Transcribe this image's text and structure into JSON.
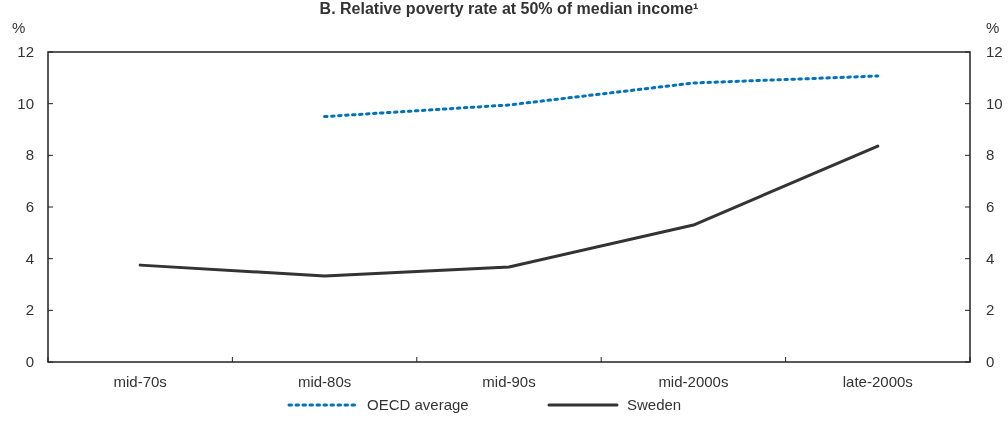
{
  "chart_data": {
    "type": "line",
    "title": "B. Relative poverty rate at 50% of median income¹",
    "ylabel": "%",
    "y2label": "%",
    "categories": [
      "mid-70s",
      "mid-80s",
      "mid-90s",
      "mid-2000s",
      "late-2000s"
    ],
    "series": [
      {
        "name": "OECD average",
        "color": "#0072bc",
        "line_style": "dotted",
        "values": [
          null,
          9.5,
          9.95,
          10.8,
          11.07
        ]
      },
      {
        "name": "Sweden",
        "color": "#333333",
        "line_style": "solid",
        "values": [
          3.75,
          3.33,
          3.68,
          5.3,
          8.36
        ]
      }
    ],
    "ylim": [
      0,
      12
    ],
    "yticks": [
      0,
      2,
      4,
      6,
      8,
      10,
      12
    ],
    "y2lim": [
      0,
      12
    ],
    "y2ticks": [
      0,
      2,
      4,
      6,
      8,
      10,
      12
    ],
    "grid": false,
    "legend": "bottom"
  }
}
